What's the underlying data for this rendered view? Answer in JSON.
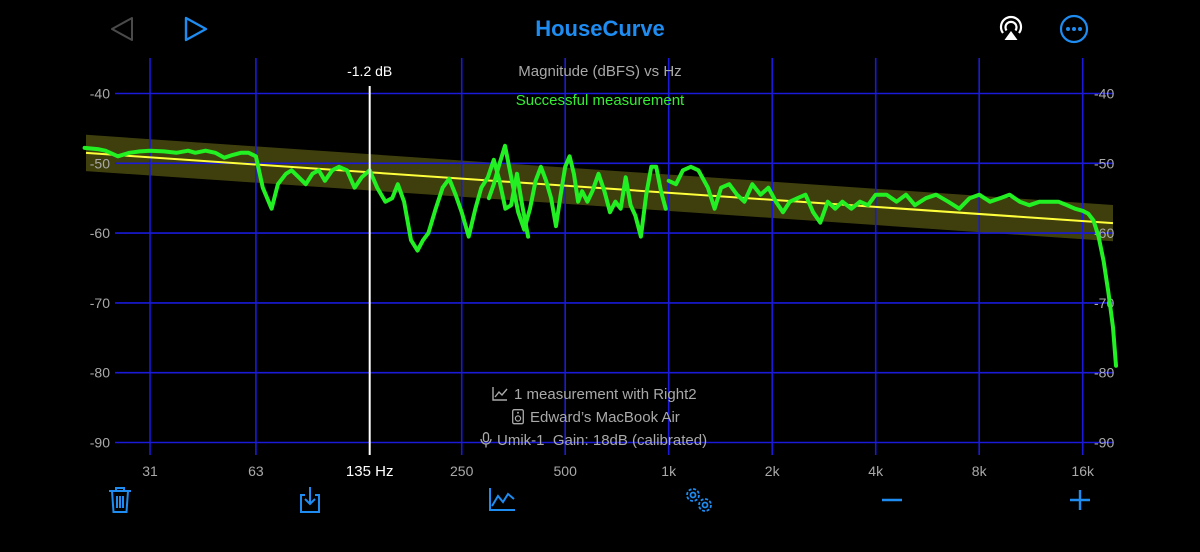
{
  "app": {
    "title": "HouseCurve",
    "back_icon": "triangle-left-icon",
    "play_icon": "triangle-right-icon",
    "airplay_icon": "airplay-audio-icon",
    "more_icon": "ellipsis-circle-icon"
  },
  "colors": {
    "accent": "#1e8cf0",
    "grid": "#1a1ad8",
    "measurement": "#22f022",
    "target": "#ffff3c",
    "target_band": "#4a4a10",
    "status_ok": "#33ee33",
    "label": "#a9a9a9"
  },
  "plot": {
    "title": "Magnitude (dBFS) vs Hz",
    "status": "Successful measurement",
    "cursor": {
      "freq": 135,
      "freq_label": "135 Hz",
      "value_label": "-1.2 dB"
    },
    "info_lines": [
      {
        "icon": "chart-line-icon",
        "text": "1 measurement with Right2"
      },
      {
        "icon": "speaker-icon",
        "text": "Edward’s MacBook Air"
      },
      {
        "icon": "microphone-icon",
        "text": "Umik-1  Gain: 18dB (calibrated)"
      }
    ]
  },
  "chart_data": {
    "type": "line",
    "title": "Magnitude (dBFS) vs Hz",
    "x_scale": "log",
    "x_ticks": [
      31,
      63,
      250,
      500,
      1000,
      2000,
      4000,
      8000,
      16000
    ],
    "x_tick_labels": [
      "31",
      "63",
      "250",
      "500",
      "1k",
      "2k",
      "4k",
      "8k",
      "16k"
    ],
    "y_ticks": [
      -40,
      -50,
      -60,
      -70,
      -80,
      -90
    ],
    "ylim": [
      -92,
      -33
    ],
    "xlim": [
      20,
      20000
    ],
    "grid": true,
    "target": {
      "from": [
        20,
        -48.5
      ],
      "to": [
        20000,
        -58.6
      ],
      "band_db": 2.6
    },
    "series": [
      {
        "segments": [
          {
            "x": [
              20,
              22,
              23,
              25,
              27,
              29,
              31,
              34,
              37,
              40,
              42,
              45,
              48,
              51,
              54,
              57,
              60,
              63,
              66,
              70,
              73,
              77,
              80,
              84,
              88,
              92,
              96,
              100,
              105,
              110,
              116,
              122,
              128,
              135,
              142,
              150,
              157,
              163,
              170,
              178,
              186,
              193,
              200,
              210,
              220,
              230,
              240,
              250,
              262,
              274,
              285,
              298,
              310,
              322,
              335,
              348,
              362,
              375,
              390
            ],
            "y": [
              -47.8,
              -48,
              -48.2,
              -49,
              -48.5,
              -48.3,
              -48.2,
              -48.3,
              -48.5,
              -48.2,
              -48.5,
              -48.2,
              -48.5,
              -49.2,
              -48.8,
              -48.5,
              -48.5,
              -49,
              -53.5,
              -56.5,
              -53,
              -51.5,
              -51,
              -52,
              -53,
              -51.5,
              -51,
              -52.5,
              -51,
              -50.5,
              -51,
              -53.5,
              -52,
              -51,
              -53.5,
              -55.5,
              -55,
              -53,
              -55.5,
              -61,
              -62.5,
              -61,
              -60,
              -56.5,
              -53.5,
              -52.2,
              -54.5,
              -57,
              -60.5,
              -56.5,
              -53.5,
              -52,
              -49.5,
              -52.5,
              -56.5,
              -56,
              -51.5,
              -56,
              -60.5
            ]
          },
          {
            "x": [
              300,
              310,
              320,
              334,
              350,
              365,
              380,
              395,
              410,
              425,
              440,
              455,
              470,
              485,
              500,
              515,
              530,
              545,
              560,
              580,
              600,
              625,
              650,
              675,
              700,
              725,
              750,
              775,
              800,
              830,
              860,
              890,
              920,
              950,
              980
            ],
            "y": [
              -55,
              -53,
              -50.5,
              -47.5,
              -52.5,
              -57,
              -59.5,
              -56.5,
              -52.5,
              -50.5,
              -52.5,
              -55,
              -59,
              -54.5,
              -50.5,
              -49,
              -51.5,
              -55.5,
              -54,
              -55.5,
              -54,
              -51.5,
              -54,
              -57,
              -55.5,
              -56.5,
              -52,
              -56,
              -57.5,
              -60.5,
              -54.5,
              -50.5,
              -50.5,
              -54,
              -56.5
            ]
          },
          {
            "x": [
              1000,
              1050,
              1100,
              1160,
              1220,
              1300,
              1360,
              1420,
              1500,
              1580,
              1660,
              1750,
              1850,
              1950,
              2050,
              2150,
              2250,
              2370,
              2500,
              2630,
              2760,
              2900,
              3050,
              3200,
              3400,
              3600,
              3800,
              4000,
              4300,
              4600,
              4900,
              5200,
              5600,
              6000,
              6500,
              7000,
              7500,
              8000,
              8600,
              9200,
              9800,
              10500,
              11200,
              12000,
              12800,
              13600,
              14400,
              15200,
              16000,
              16600,
              17200,
              17800,
              18400,
              19000,
              19600,
              20000
            ],
            "y": [
              -52.5,
              -53,
              -51,
              -50.5,
              -51,
              -53.5,
              -56.5,
              -53.5,
              -53,
              -54.5,
              -55.5,
              -53,
              -54.5,
              -53.5,
              -55.5,
              -57,
              -55.5,
              -55,
              -54.5,
              -57,
              -58.5,
              -55.5,
              -56.5,
              -55.5,
              -56.5,
              -55.5,
              -56,
              -54.5,
              -54.5,
              -55.5,
              -54.5,
              -56,
              -55,
              -54.5,
              -55.5,
              -56.5,
              -55,
              -54.5,
              -55.5,
              -55,
              -54.5,
              -55.5,
              -56,
              -55.5,
              -55.5,
              -55.5,
              -56,
              -56.5,
              -56.8,
              -57.2,
              -58.2,
              -60.5,
              -64,
              -68.5,
              -73.5,
              -79
            ]
          }
        ]
      }
    ]
  },
  "toolbar": {
    "trash_icon": "trash-icon",
    "export_icon": "export-icon",
    "chart_icon": "chart-line-icon",
    "settings_icon": "gears-icon",
    "minus_icon": "minus-icon",
    "plus_icon": "plus-icon"
  }
}
